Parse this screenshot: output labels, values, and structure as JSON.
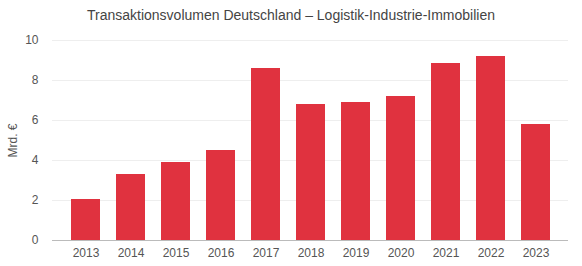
{
  "chart_data": {
    "type": "bar",
    "title": "Transaktionsvolumen Deutschland – Logistik-Industrie-Immobilien",
    "y_label": "Mrd. €",
    "categories": [
      "2013",
      "2014",
      "2015",
      "2016",
      "2017",
      "2018",
      "2019",
      "2020",
      "2021",
      "2022",
      "2023"
    ],
    "values": [
      2.05,
      3.3,
      3.9,
      4.5,
      8.6,
      6.8,
      6.9,
      7.2,
      8.85,
      9.2,
      5.8
    ],
    "color": "#e0323f",
    "ylim": [
      0,
      10
    ],
    "yticks": [
      0,
      2,
      4,
      6,
      8,
      10
    ],
    "grid": true
  }
}
